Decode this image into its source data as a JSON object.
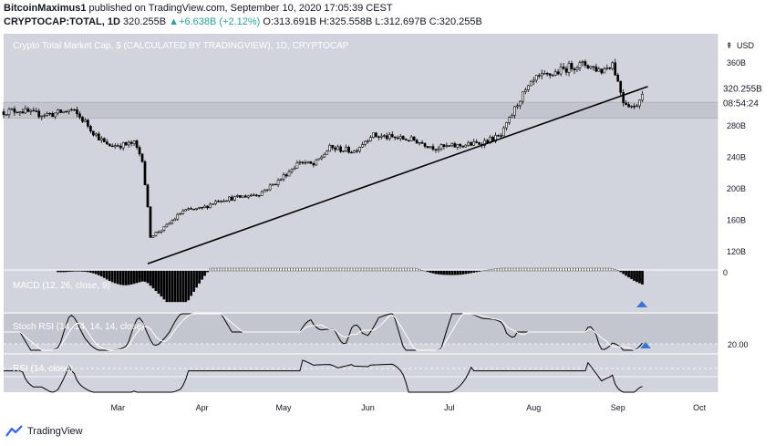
{
  "header": {
    "author": "BitcoinMaximus1",
    "published_text": "published on TradingView.com, September 10, 2020 17:05:39 CEST",
    "symbol": "CRYPTOCAP:TOTAL, 1D",
    "last": "320.255B",
    "change": "+6.638B (+2.12%)",
    "o_label": "O:",
    "o_value": "313.691B",
    "h_label": "H:",
    "h_value": "325.558B",
    "l_label": "L:",
    "l_value": "312.697B",
    "c_label": "C:",
    "c_value": "320.255B"
  },
  "brand": {
    "name": "TradingView",
    "icon": "tradingview-logo-icon"
  },
  "colors": {
    "background": "#d1d4dc",
    "candle": "#000000",
    "hist": "#000000",
    "trendline": "#000000",
    "arrow": "#3b73d6",
    "axis_text": "#131722"
  },
  "chart_data": [
    {
      "type": "candlestick",
      "title": "Crypto Total Market Cap, $ (CALCULATED BY TRADINGVIEW), 1D, CRYPTOCAP",
      "unit": "USD",
      "y_ticks": [
        {
          "value": 120,
          "label": "120B"
        },
        {
          "value": 160,
          "label": "160B"
        },
        {
          "value": 200,
          "label": "200B"
        },
        {
          "value": 240,
          "label": "240B"
        },
        {
          "value": 280,
          "label": "280B"
        },
        {
          "value": 360,
          "label": "360B"
        }
      ],
      "ylim": [
        97,
        397
      ],
      "x_ticks": [
        {
          "date": "2020-03-01",
          "label": "Mar"
        },
        {
          "date": "2020-04-01",
          "label": "Apr"
        },
        {
          "date": "2020-05-01",
          "label": "May"
        },
        {
          "date": "2020-06-01",
          "label": "Jun"
        },
        {
          "date": "2020-07-01",
          "label": "Jul"
        },
        {
          "date": "2020-08-01",
          "label": "Aug"
        },
        {
          "date": "2020-09-01",
          "label": "Sep"
        },
        {
          "date": "2020-10-01",
          "label": "Oct"
        }
      ],
      "xlim": [
        "2020-01-19",
        "2020-10-08"
      ],
      "price_label": "320.255B",
      "countdown_label": "08:54:24",
      "last_value": 320.255,
      "support_zone": [
        290,
        310
      ],
      "trendline": [
        {
          "date": "2020-03-12",
          "value": 105
        },
        {
          "date": "2020-09-12",
          "value": 330
        }
      ],
      "anchors": [
        [
          "2020-01-19",
          298
        ],
        [
          "2020-01-25",
          300
        ],
        [
          "2020-01-30",
          295
        ],
        [
          "2020-02-06",
          295
        ],
        [
          "2020-02-13",
          300
        ],
        [
          "2020-02-18",
          285
        ],
        [
          "2020-02-21",
          272
        ],
        [
          "2020-02-26",
          255
        ],
        [
          "2020-03-04",
          256
        ],
        [
          "2020-03-07",
          258
        ],
        [
          "2020-03-10",
          238
        ],
        [
          "2020-03-12",
          175
        ],
        [
          "2020-03-13",
          140
        ],
        [
          "2020-03-18",
          150
        ],
        [
          "2020-03-25",
          172
        ],
        [
          "2020-04-01",
          175
        ],
        [
          "2020-04-07",
          186
        ],
        [
          "2020-04-14",
          189
        ],
        [
          "2020-04-22",
          194
        ],
        [
          "2020-04-29",
          210
        ],
        [
          "2020-05-07",
          235
        ],
        [
          "2020-05-12",
          230
        ],
        [
          "2020-05-18",
          252
        ],
        [
          "2020-05-27",
          248
        ],
        [
          "2020-06-02",
          268
        ],
        [
          "2020-06-10",
          265
        ],
        [
          "2020-06-18",
          262
        ],
        [
          "2020-06-26",
          252
        ],
        [
          "2020-07-05",
          255
        ],
        [
          "2020-07-12",
          258
        ],
        [
          "2020-07-20",
          267
        ],
        [
          "2020-07-27",
          315
        ],
        [
          "2020-08-02",
          340
        ],
        [
          "2020-08-08",
          346
        ],
        [
          "2020-08-15",
          356
        ],
        [
          "2020-08-20",
          358
        ],
        [
          "2020-08-26",
          350
        ],
        [
          "2020-08-30",
          360
        ],
        [
          "2020-09-03",
          312
        ],
        [
          "2020-09-07",
          303
        ],
        [
          "2020-09-10",
          320
        ]
      ]
    },
    {
      "type": "histogram",
      "title": "MACD (12, 26, close, 9)",
      "zero_label": "0",
      "signal": "bullish-divergence-arrow"
    },
    {
      "type": "line",
      "title": "Stoch RSI (14, 14, 14, 14, close)",
      "level_label": "20.00",
      "level": 20,
      "signal": "bullish-cross-arrow"
    },
    {
      "type": "line",
      "title": "RSI (14, close)"
    }
  ]
}
